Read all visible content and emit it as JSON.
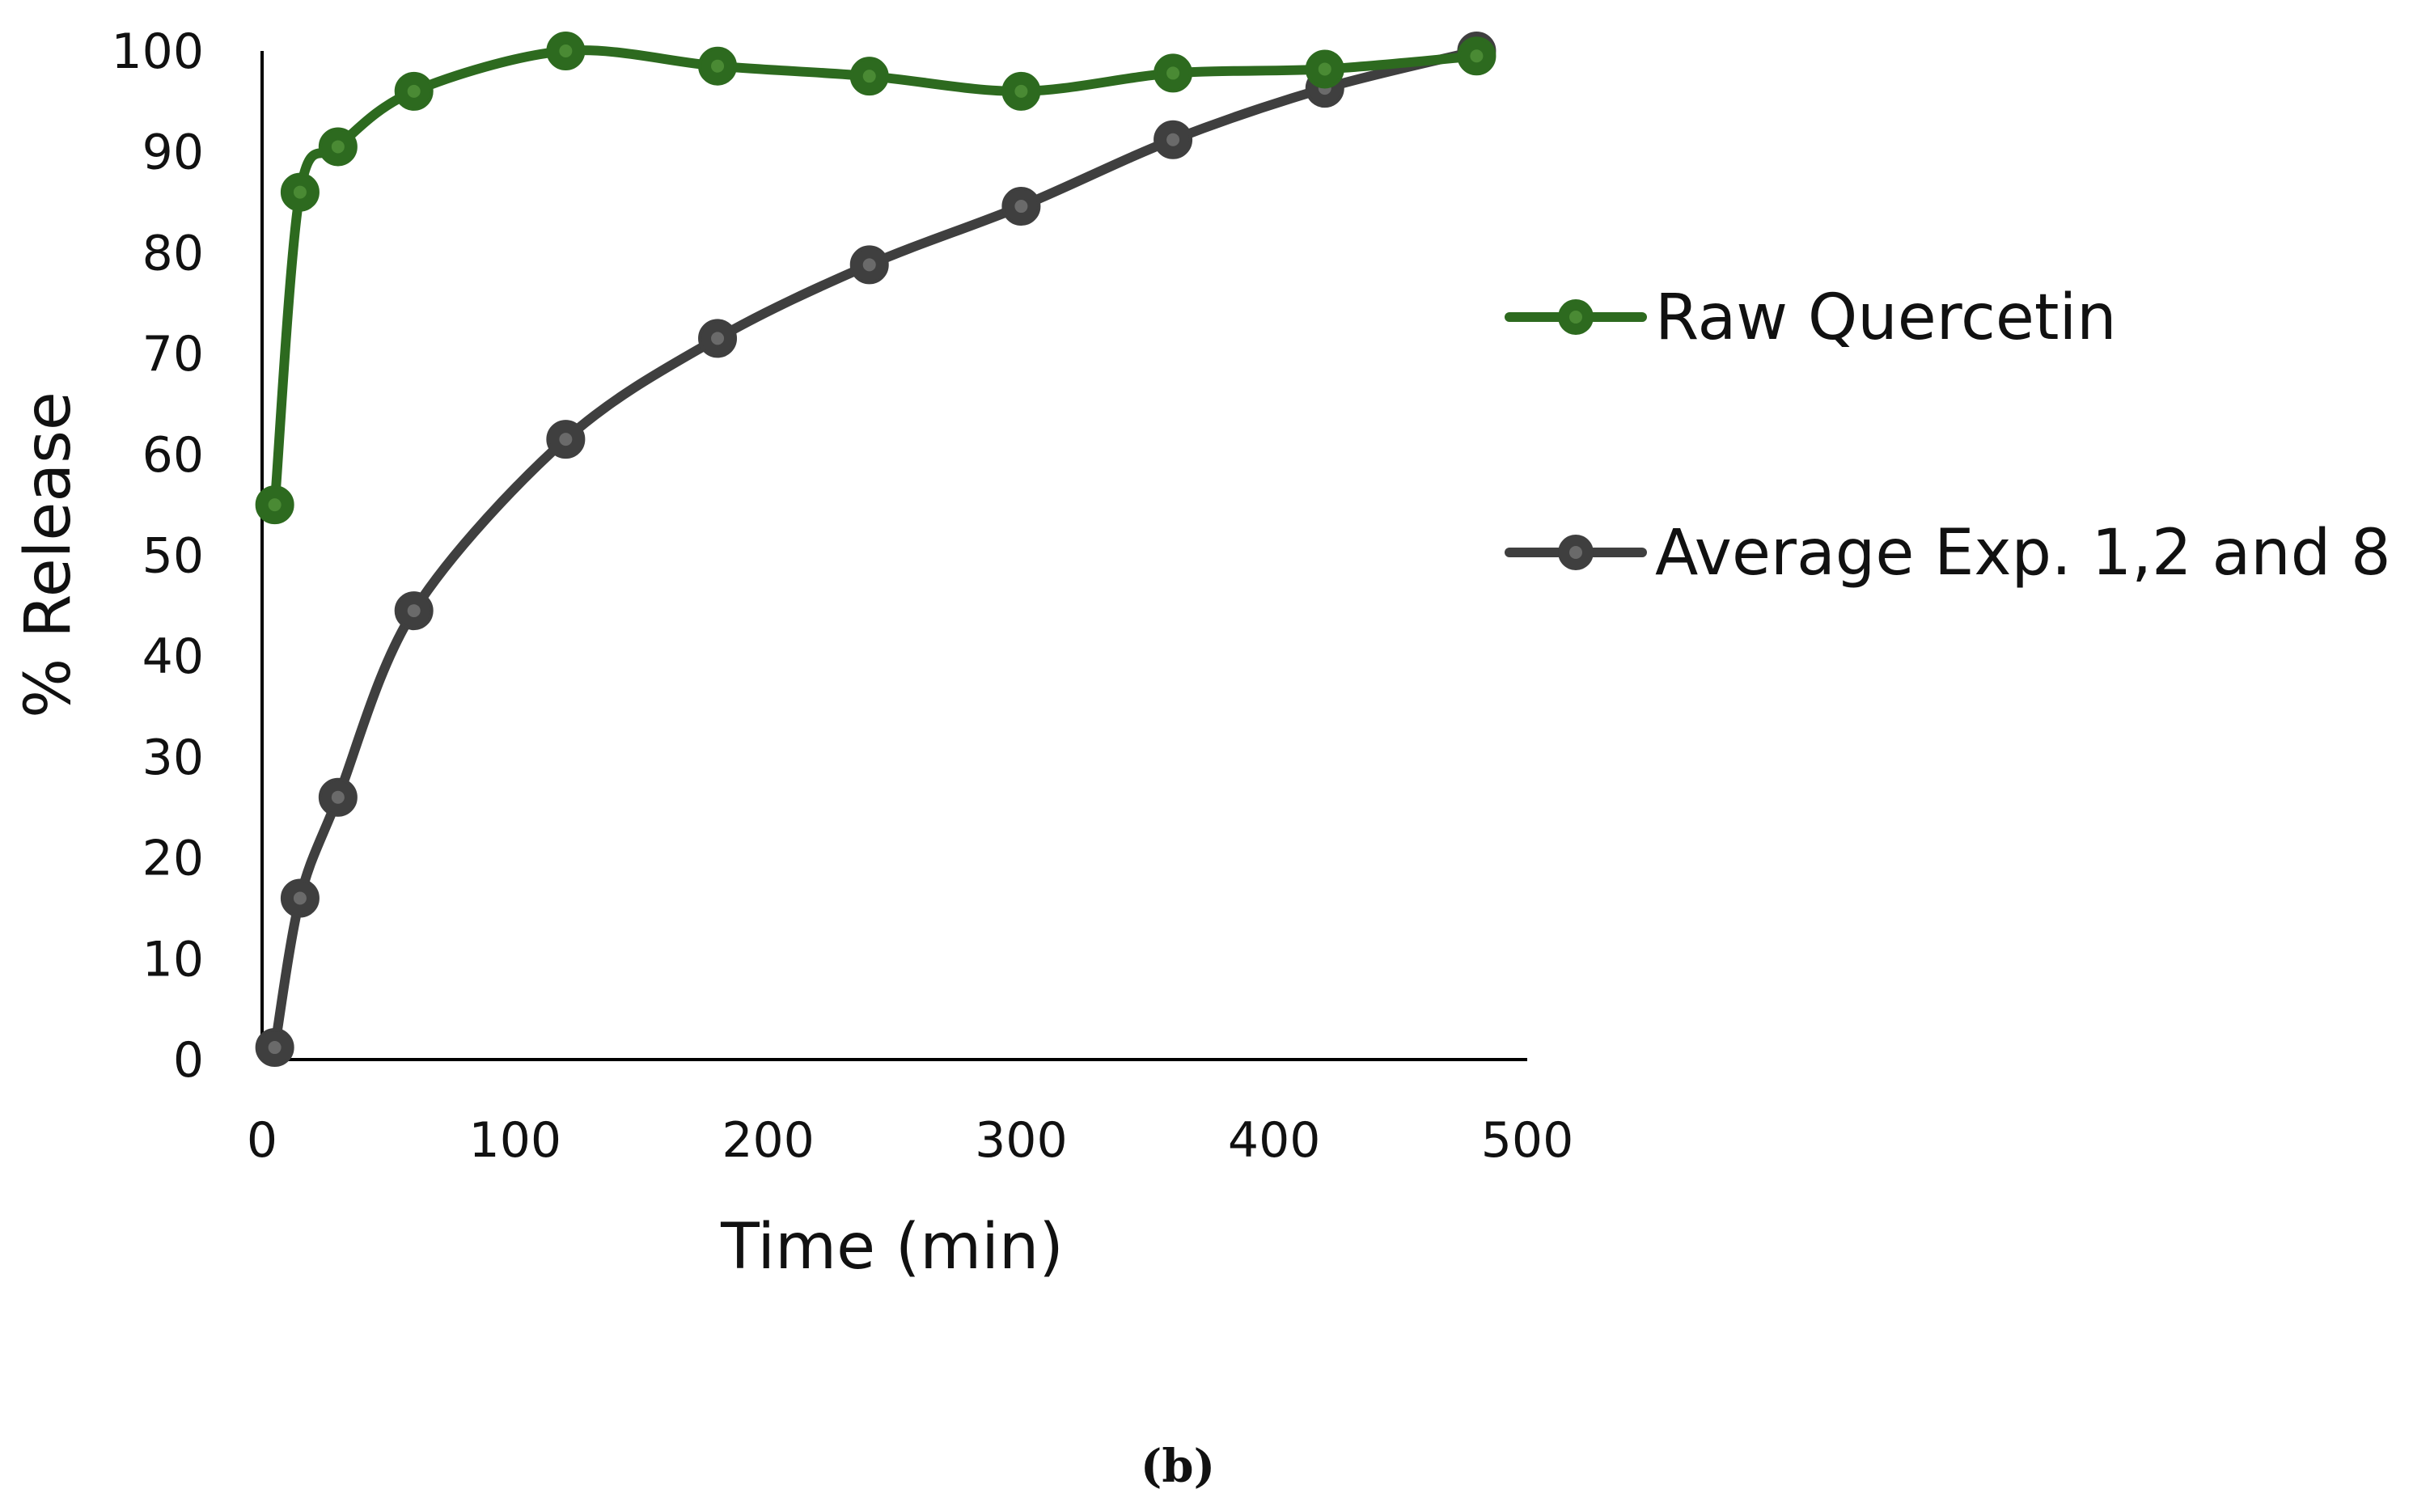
{
  "chart_data": {
    "type": "line",
    "title": "",
    "xlabel": "Time (min)",
    "ylabel": "% Release",
    "xlim": [
      0,
      500
    ],
    "ylim": [
      0,
      100
    ],
    "xticks": [
      0,
      100,
      200,
      300,
      400,
      500
    ],
    "yticks": [
      0,
      10,
      20,
      30,
      40,
      50,
      60,
      70,
      80,
      90,
      100
    ],
    "grid": false,
    "legend_position": "right",
    "series": [
      {
        "name": "Raw Quercetin",
        "color": "#2d6a1f",
        "x": [
          5,
          15,
          30,
          60,
          120,
          180,
          240,
          300,
          360,
          420,
          480
        ],
        "y": [
          55,
          86,
          90.5,
          96,
          100,
          98.5,
          97.5,
          96,
          97.8,
          98.2,
          99.5
        ]
      },
      {
        "name": "Average Exp. 1,2 and 8",
        "color": "#3f3f3f",
        "x": [
          5,
          15,
          30,
          60,
          120,
          180,
          240,
          300,
          360,
          420,
          480
        ],
        "y": [
          1.2,
          16,
          26,
          44.5,
          61.5,
          71.5,
          78.8,
          84.6,
          91.2,
          96.3,
          100
        ]
      }
    ]
  },
  "caption": "(b)"
}
